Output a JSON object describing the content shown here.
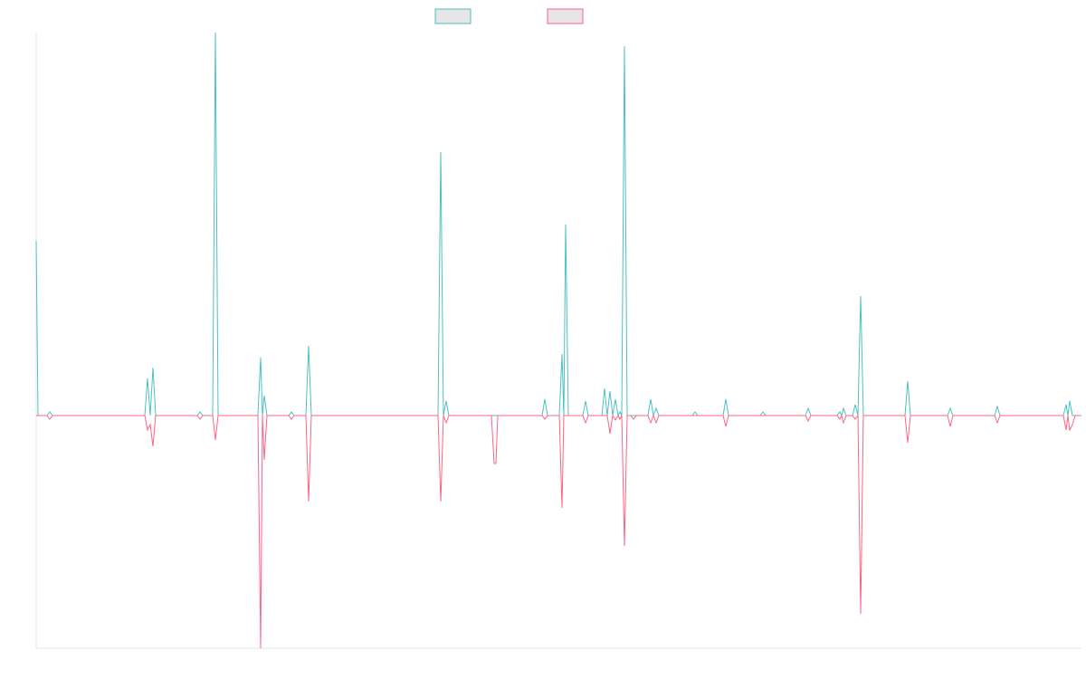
{
  "chart_data": {
    "type": "line",
    "x": [
      40,
      42,
      52,
      55,
      58,
      160,
      163,
      166,
      169,
      172,
      218,
      221,
      224,
      235,
      238,
      241,
      285,
      288,
      290,
      292,
      295,
      319,
      322,
      325,
      338,
      341,
      344,
      484,
      487,
      490,
      493,
      496,
      543,
      546,
      548,
      550,
      599,
      602,
      605,
      618,
      621,
      623,
      625,
      628,
      644,
      647,
      650,
      665,
      668,
      671,
      674,
      677,
      680,
      683,
      685,
      687,
      690,
      693,
      697,
      700,
      703,
      716,
      719,
      722,
      725,
      728,
      765,
      768,
      771,
      799,
      802,
      805,
      840,
      843,
      846,
      890,
      893,
      896,
      925,
      928,
      930,
      932,
      935,
      942,
      945,
      948,
      951,
      954,
      1000,
      1003,
      1006,
      1047,
      1050,
      1053,
      1099,
      1102,
      1105,
      1175,
      1178,
      1180,
      1182,
      1185,
      1188,
      1195
    ],
    "series": [
      {
        "color": "#4bc0c0",
        "values": [
          193,
          0,
          0,
          4,
          0,
          0,
          41,
          0,
          53,
          0,
          0,
          4,
          0,
          0,
          423,
          0,
          0,
          64,
          0,
          22,
          0,
          0,
          4,
          0,
          0,
          77,
          0,
          0,
          291,
          0,
          16,
          0,
          0,
          0,
          0,
          0,
          0,
          18,
          0,
          0,
          68,
          0,
          211,
          0,
          0,
          16,
          0,
          0,
          30,
          0,
          27,
          0,
          18,
          0,
          4,
          0,
          408,
          0,
          0,
          0,
          0,
          0,
          18,
          0,
          8,
          0,
          0,
          4,
          0,
          0,
          18,
          0,
          0,
          4,
          0,
          0,
          8,
          0,
          0,
          4,
          0,
          8,
          0,
          0,
          12,
          0,
          132,
          0,
          0,
          38,
          0,
          0,
          8,
          0,
          0,
          10,
          0,
          0,
          12,
          0,
          16,
          0,
          0,
          0
        ]
      },
      {
        "color": "#ff6384",
        "values": [
          0,
          0,
          0,
          -4,
          0,
          0,
          -16,
          -10,
          -34,
          0,
          0,
          -4,
          0,
          0,
          -27,
          0,
          0,
          -257,
          0,
          -49,
          0,
          0,
          -4,
          0,
          0,
          -95,
          0,
          0,
          -95,
          0,
          -8,
          0,
          0,
          -53,
          -53,
          0,
          0,
          -4,
          0,
          0,
          -102,
          0,
          0,
          0,
          0,
          -8,
          0,
          0,
          0,
          0,
          -20,
          0,
          -5,
          0,
          -4,
          0,
          -144,
          0,
          0,
          -4,
          0,
          0,
          -8,
          0,
          -8,
          0,
          0,
          0,
          0,
          0,
          -12,
          0,
          0,
          0,
          0,
          0,
          -6,
          0,
          0,
          -4,
          0,
          -8,
          0,
          0,
          -4,
          0,
          -219,
          0,
          0,
          -30,
          0,
          0,
          -12,
          0,
          0,
          -8,
          0,
          0,
          -16,
          0,
          -16,
          -10,
          0,
          0
        ]
      }
    ],
    "xlim": [
      40,
      1195
    ],
    "ylim": [
      -257,
      423
    ]
  }
}
